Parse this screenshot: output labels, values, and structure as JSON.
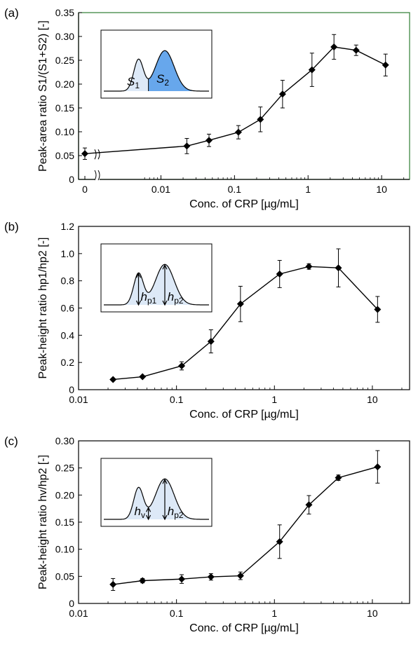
{
  "chart_data": [
    {
      "type": "line",
      "panel": "(a)",
      "xlabel": "Conc. of CRP [µg/mL]",
      "ylabel": "Peak-area ratio S1/(S1+S2) [-]",
      "x_scale": "log",
      "x_tick_labels": [
        "0",
        "0.01",
        "0.1",
        "1",
        "10"
      ],
      "y_tick_labels": [
        "0",
        "0.05",
        "0.10",
        "0.15",
        "0.20",
        "0.25",
        "0.30",
        "0.35"
      ],
      "ylim": [
        0,
        0.35
      ],
      "grid": false,
      "axis_break": true,
      "frame_color": "#2e7d32",
      "x": [
        0,
        0.0225,
        0.045,
        0.113,
        0.225,
        0.45,
        1.13,
        2.25,
        4.5,
        11.3
      ],
      "y": [
        0.054,
        0.07,
        0.082,
        0.099,
        0.126,
        0.179,
        0.23,
        0.278,
        0.271,
        0.24
      ],
      "yerr": [
        0.012,
        0.016,
        0.013,
        0.014,
        0.026,
        0.029,
        0.035,
        0.026,
        0.011,
        0.023
      ],
      "inset": {
        "labels": [
          "S1",
          "S2"
        ]
      }
    },
    {
      "type": "line",
      "panel": "(b)",
      "xlabel": "Conc. of CRP [µg/mL]",
      "ylabel": "Peak-height ratio hp1/hp2 [-]",
      "x_scale": "log",
      "x_tick_labels": [
        "0.01",
        "0.1",
        "1",
        "10"
      ],
      "y_tick_labels": [
        "0",
        "0.2",
        "0.4",
        "0.6",
        "0.8",
        "1.0",
        "1.2"
      ],
      "ylim": [
        0,
        1.2
      ],
      "grid": false,
      "x": [
        0.0225,
        0.045,
        0.113,
        0.225,
        0.45,
        1.13,
        2.25,
        4.5,
        11.3
      ],
      "y": [
        0.075,
        0.095,
        0.175,
        0.355,
        0.63,
        0.85,
        0.905,
        0.895,
        0.59
      ],
      "yerr": [
        0.0,
        0.005,
        0.03,
        0.085,
        0.13,
        0.1,
        0.02,
        0.14,
        0.095
      ],
      "inset": {
        "labels": [
          "hp1",
          "hp2"
        ]
      }
    },
    {
      "type": "line",
      "panel": "(c)",
      "xlabel": "Conc. of CRP [µg/mL]",
      "ylabel": "Peak-height ratio hv/hp2 [-]",
      "x_scale": "log",
      "x_tick_labels": [
        "0.01",
        "0.1",
        "1",
        "10"
      ],
      "y_tick_labels": [
        "0",
        "0.05",
        "0.10",
        "0.15",
        "0.20",
        "0.25",
        "0.30"
      ],
      "ylim": [
        0,
        0.3
      ],
      "grid": false,
      "x": [
        0.0225,
        0.045,
        0.113,
        0.225,
        0.45,
        1.13,
        2.25,
        4.5,
        11.3
      ],
      "y": [
        0.035,
        0.042,
        0.045,
        0.049,
        0.051,
        0.114,
        0.182,
        0.232,
        0.252
      ],
      "yerr": [
        0.011,
        0.004,
        0.008,
        0.006,
        0.007,
        0.031,
        0.017,
        0.005,
        0.03
      ],
      "inset": {
        "labels": [
          "hv",
          "hp2"
        ]
      }
    }
  ],
  "colors": {
    "marker": "#000000",
    "fill_light": "#dde9f7",
    "fill_dark": "#67a7ec",
    "panel_a_frame": "#2e7d32"
  }
}
